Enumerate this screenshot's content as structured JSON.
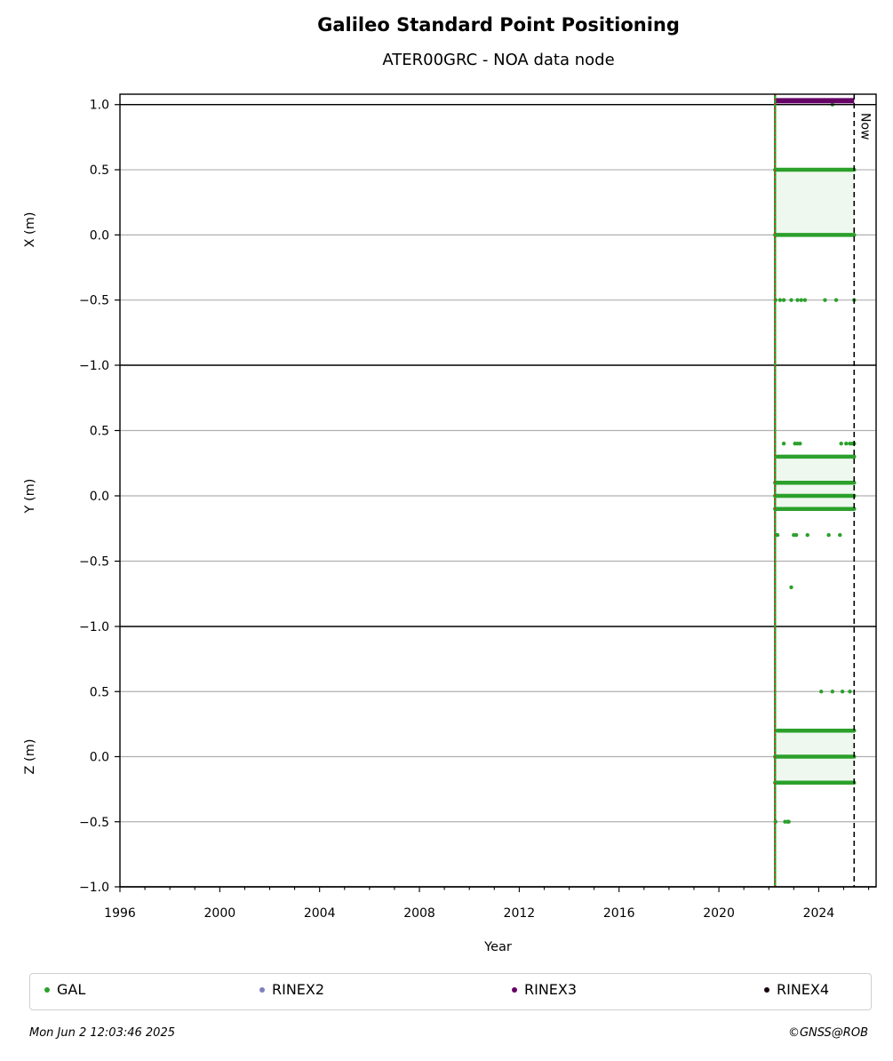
{
  "title": "Galileo Standard Point Positioning",
  "subtitle": "ATER00GRC - NOA data node",
  "now_label": "Now",
  "footer": {
    "timestamp": "Mon Jun  2 12:03:46 2025",
    "copyright": "©GNSS@ROB"
  },
  "colors": {
    "GAL": "#2ca02c",
    "RINEX2": "#7f7fbf",
    "RINEX3": "#660066",
    "RINEX4": "#1a0010",
    "start_line": "#d62728"
  },
  "legend": [
    {
      "name": "GAL",
      "color": "#2ca02c"
    },
    {
      "name": "RINEX2",
      "color": "#7f7fbf"
    },
    {
      "name": "RINEX3",
      "color": "#660066"
    },
    {
      "name": "RINEX4",
      "color": "#1a0010"
    }
  ],
  "chart_data": {
    "type": "scatter",
    "xlabel": "Year",
    "xlim": [
      1996,
      2026.3
    ],
    "x_ticks": [
      "1996",
      "2000",
      "2004",
      "2008",
      "2012",
      "2016",
      "2020",
      "2024"
    ],
    "x_tick_values": [
      1996,
      2000,
      2004,
      2008,
      2012,
      2016,
      2020,
      2024
    ],
    "start_marker": 2022.25,
    "now_marker": 2025.42,
    "rinex3_band": {
      "x": [
        2022.25,
        2025.42
      ],
      "y": 1.03
    },
    "panels": [
      {
        "ylabel": "X (m)",
        "ylim": [
          -1.0,
          1.08
        ],
        "y_ticks": [
          "−1.0",
          "−0.5",
          "0.0",
          "0.5",
          "1.0"
        ],
        "y_tick_values": [
          -1.0,
          -0.5,
          0.0,
          0.5,
          1.0
        ],
        "grid": true,
        "bands": [
          {
            "y": 0.5,
            "x": [
              2022.25,
              2025.42
            ]
          },
          {
            "y": 0.0,
            "x": [
              2022.25,
              2025.42
            ]
          }
        ],
        "points": [
          {
            "x": 2022.27,
            "y": -0.5
          },
          {
            "x": 2022.45,
            "y": -0.5
          },
          {
            "x": 2022.6,
            "y": -0.5
          },
          {
            "x": 2022.9,
            "y": -0.5
          },
          {
            "x": 2023.15,
            "y": -0.5
          },
          {
            "x": 2023.3,
            "y": -0.5
          },
          {
            "x": 2023.45,
            "y": -0.5
          },
          {
            "x": 2024.25,
            "y": -0.5
          },
          {
            "x": 2024.7,
            "y": -0.5
          },
          {
            "x": 2025.42,
            "y": -0.5
          },
          {
            "x": 2024.55,
            "y": 1.0
          }
        ]
      },
      {
        "ylabel": "Y (m)",
        "ylim": [
          -1.0,
          1.0
        ],
        "y_ticks": [
          "−1.0",
          "−0.5",
          "0.0",
          "0.5"
        ],
        "y_tick_values": [
          -1.0,
          -0.5,
          0.0,
          0.5
        ],
        "grid": true,
        "bands": [
          {
            "y": 0.1,
            "x": [
              2022.25,
              2025.42
            ]
          },
          {
            "y": 0.0,
            "x": [
              2022.25,
              2025.42
            ]
          },
          {
            "y": -0.1,
            "x": [
              2022.25,
              2025.42
            ]
          },
          {
            "y": 0.3,
            "x": [
              2022.35,
              2025.42
            ]
          }
        ],
        "points": [
          {
            "x": 2022.3,
            "y": -0.3
          },
          {
            "x": 2022.35,
            "y": -0.3
          },
          {
            "x": 2023.0,
            "y": -0.3
          },
          {
            "x": 2023.1,
            "y": -0.3
          },
          {
            "x": 2023.55,
            "y": -0.3
          },
          {
            "x": 2024.4,
            "y": -0.3
          },
          {
            "x": 2024.85,
            "y": -0.3
          },
          {
            "x": 2022.9,
            "y": -0.7
          },
          {
            "x": 2022.6,
            "y": 0.4
          },
          {
            "x": 2023.05,
            "y": 0.4
          },
          {
            "x": 2023.15,
            "y": 0.4
          },
          {
            "x": 2023.25,
            "y": 0.4
          },
          {
            "x": 2024.9,
            "y": 0.4
          },
          {
            "x": 2025.1,
            "y": 0.4
          },
          {
            "x": 2025.25,
            "y": 0.4
          },
          {
            "x": 2025.35,
            "y": 0.4
          },
          {
            "x": 2025.42,
            "y": 0.4
          }
        ]
      },
      {
        "ylabel": "Z (m)",
        "ylim": [
          -1.0,
          1.0
        ],
        "y_ticks": [
          "−1.0",
          "−0.5",
          "0.0",
          "0.5"
        ],
        "y_tick_values": [
          -1.0,
          -0.5,
          0.0,
          0.5
        ],
        "grid": true,
        "bands": [
          {
            "y": 0.2,
            "x": [
              2022.35,
              2025.42
            ]
          },
          {
            "y": 0.0,
            "x": [
              2022.25,
              2025.42
            ]
          },
          {
            "y": -0.2,
            "x": [
              2022.25,
              2025.42
            ]
          }
        ],
        "points": [
          {
            "x": 2022.27,
            "y": -0.5
          },
          {
            "x": 2022.65,
            "y": -0.5
          },
          {
            "x": 2022.75,
            "y": -0.5
          },
          {
            "x": 2022.8,
            "y": -0.5
          },
          {
            "x": 2024.1,
            "y": 0.5
          },
          {
            "x": 2024.55,
            "y": 0.5
          },
          {
            "x": 2024.95,
            "y": 0.5
          },
          {
            "x": 2025.25,
            "y": 0.5
          }
        ]
      }
    ]
  }
}
